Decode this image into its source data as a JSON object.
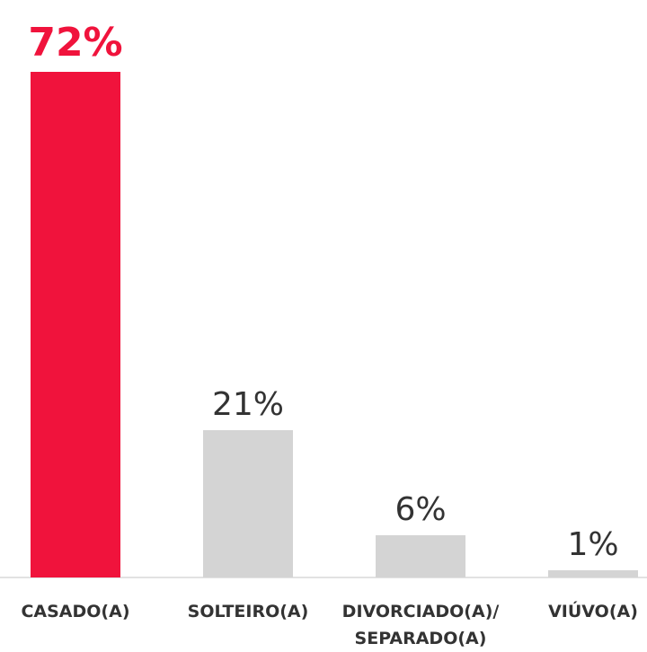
{
  "chart_data": {
    "type": "bar",
    "categories": [
      "CASADO(A)",
      "SOLTEIRO(A)",
      "DIVORCIADO(A)/ SEPARADO(A)",
      "VIÚVO(A)"
    ],
    "values": [
      72,
      21,
      6,
      1
    ],
    "value_labels": [
      "72%",
      "21%",
      "6%",
      "1%"
    ],
    "colors": [
      "#f0133c",
      "#d4d4d4",
      "#d4d4d4",
      "#d4d4d4"
    ],
    "value_label_colors": [
      "#f0133c",
      "#333333",
      "#333333",
      "#333333"
    ]
  }
}
